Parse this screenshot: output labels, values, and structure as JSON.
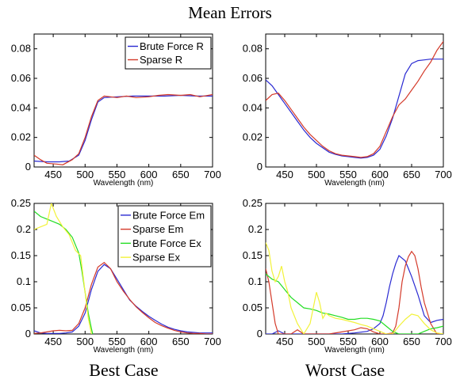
{
  "figure": {
    "title": "Mean Errors",
    "caption_left": "Best Case",
    "caption_right": "Worst Case"
  },
  "colors": {
    "blue": "#2a2ad2",
    "red": "#d43a2a",
    "green": "#22dd22",
    "yellow": "#f2f23a"
  },
  "chart_data": [
    {
      "type": "line",
      "id": "panel-top-left",
      "xlabel": "Wavelength (nm)",
      "xlim": [
        420,
        700
      ],
      "ylim": [
        0,
        0.09
      ],
      "xticks": [
        450,
        500,
        550,
        600,
        650,
        700
      ],
      "yticks": [
        0,
        0.02,
        0.04,
        0.06,
        0.08
      ],
      "ytick_labels": [
        "0",
        "0.02",
        "0.04",
        "0.06",
        "0.08"
      ],
      "legend_position": "top-right",
      "series": [
        {
          "name": "Brute Force R",
          "color": "#2a2ad2",
          "x": [
            420,
            440,
            460,
            475,
            490,
            500,
            510,
            520,
            530,
            550,
            575,
            600,
            625,
            650,
            675,
            700
          ],
          "y": [
            0.004,
            0.0035,
            0.0035,
            0.004,
            0.008,
            0.018,
            0.032,
            0.044,
            0.047,
            0.0475,
            0.048,
            0.048,
            0.048,
            0.0485,
            0.048,
            0.048
          ]
        },
        {
          "name": "Sparse R",
          "color": "#d43a2a",
          "x": [
            420,
            430,
            440,
            455,
            465,
            480,
            490,
            500,
            510,
            520,
            530,
            540,
            550,
            565,
            580,
            600,
            615,
            630,
            650,
            665,
            680,
            700
          ],
          "y": [
            0.008,
            0.005,
            0.0025,
            0.002,
            0.0015,
            0.005,
            0.009,
            0.02,
            0.034,
            0.045,
            0.048,
            0.0475,
            0.047,
            0.048,
            0.047,
            0.0475,
            0.0485,
            0.049,
            0.0485,
            0.049,
            0.0475,
            0.049
          ]
        }
      ]
    },
    {
      "type": "line",
      "id": "panel-top-right",
      "xlabel": "Wavelength (nm)",
      "xlim": [
        420,
        700
      ],
      "ylim": [
        0,
        0.09
      ],
      "xticks": [
        450,
        500,
        550,
        600,
        650,
        700
      ],
      "yticks": [
        0,
        0.02,
        0.04,
        0.06,
        0.08
      ],
      "ytick_labels": [
        "0",
        "0.02",
        "0.04",
        "0.06",
        "0.08"
      ],
      "series": [
        {
          "name": "",
          "color": "#2a2ad2",
          "x": [
            420,
            430,
            440,
            450,
            460,
            470,
            480,
            490,
            500,
            510,
            520,
            530,
            540,
            550,
            560,
            570,
            580,
            590,
            600,
            610,
            620,
            630,
            640,
            650,
            660,
            670,
            680,
            690,
            700
          ],
          "y": [
            0.059,
            0.055,
            0.049,
            0.043,
            0.037,
            0.031,
            0.025,
            0.02,
            0.016,
            0.013,
            0.01,
            0.0085,
            0.0075,
            0.007,
            0.0065,
            0.006,
            0.0065,
            0.008,
            0.012,
            0.021,
            0.033,
            0.048,
            0.063,
            0.07,
            0.072,
            0.0725,
            0.073,
            0.073,
            0.073
          ]
        },
        {
          "name": "",
          "color": "#d43a2a",
          "x": [
            420,
            430,
            440,
            450,
            460,
            470,
            480,
            490,
            500,
            510,
            520,
            530,
            540,
            550,
            560,
            570,
            580,
            590,
            600,
            610,
            620,
            630,
            640,
            650,
            660,
            670,
            680,
            690,
            700
          ],
          "y": [
            0.045,
            0.049,
            0.05,
            0.045,
            0.039,
            0.033,
            0.027,
            0.022,
            0.018,
            0.014,
            0.011,
            0.009,
            0.008,
            0.0075,
            0.007,
            0.0065,
            0.007,
            0.009,
            0.014,
            0.024,
            0.034,
            0.042,
            0.046,
            0.052,
            0.058,
            0.065,
            0.071,
            0.079,
            0.085
          ]
        }
      ]
    },
    {
      "type": "line",
      "id": "panel-bottom-left",
      "xlabel": "Wavelength (nm)",
      "xlim": [
        420,
        700
      ],
      "ylim": [
        0,
        0.25
      ],
      "xticks": [
        450,
        500,
        550,
        600,
        650,
        700
      ],
      "yticks": [
        0,
        0.05,
        0.1,
        0.15,
        0.2,
        0.25
      ],
      "ytick_labels": [
        "0",
        "0.05",
        "0.1",
        "0.15",
        "0.2",
        "0.25"
      ],
      "legend_position": "top-right",
      "series": [
        {
          "name": "Brute Force Em",
          "color": "#2a2ad2",
          "x": [
            420,
            430,
            440,
            450,
            460,
            470,
            480,
            490,
            500,
            510,
            520,
            530,
            540,
            550,
            560,
            570,
            580,
            590,
            600,
            610,
            620,
            630,
            640,
            650,
            660,
            670,
            680,
            690,
            700
          ],
          "y": [
            0.006,
            0.002,
            0.001,
            0.001,
            0.001,
            0.002,
            0.004,
            0.015,
            0.04,
            0.085,
            0.12,
            0.133,
            0.125,
            0.105,
            0.085,
            0.065,
            0.053,
            0.043,
            0.034,
            0.026,
            0.019,
            0.013,
            0.009,
            0.006,
            0.004,
            0.003,
            0.002,
            0.002,
            0.002
          ]
        },
        {
          "name": "Sparse Em",
          "color": "#d43a2a",
          "x": [
            420,
            430,
            440,
            450,
            460,
            470,
            480,
            490,
            500,
            510,
            520,
            530,
            540,
            550,
            560,
            570,
            580,
            590,
            600,
            610,
            620,
            630,
            640,
            650,
            660,
            670,
            680,
            690,
            700
          ],
          "y": [
            0.001,
            0.002,
            0.004,
            0.006,
            0.007,
            0.006,
            0.007,
            0.02,
            0.05,
            0.095,
            0.128,
            0.137,
            0.125,
            0.1,
            0.082,
            0.066,
            0.052,
            0.041,
            0.031,
            0.022,
            0.016,
            0.011,
            0.007,
            0.004,
            0.002,
            0.001,
            0.001,
            0.0,
            0.0
          ]
        },
        {
          "name": "Brute Force Ex",
          "color": "#22dd22",
          "x": [
            420,
            430,
            440,
            450,
            460,
            470,
            480,
            490,
            495,
            500,
            505,
            510,
            512
          ],
          "y": [
            0.235,
            0.225,
            0.22,
            0.215,
            0.21,
            0.2,
            0.185,
            0.155,
            0.12,
            0.08,
            0.04,
            0.01,
            0.0
          ]
        },
        {
          "name": "Sparse Ex",
          "color": "#f2f23a",
          "x": [
            420,
            430,
            440,
            447,
            455,
            465,
            475,
            485,
            493,
            500,
            505,
            510
          ],
          "y": [
            0.2,
            0.205,
            0.21,
            0.25,
            0.225,
            0.205,
            0.19,
            0.16,
            0.15,
            0.08,
            0.03,
            0.0
          ]
        }
      ]
    },
    {
      "type": "line",
      "id": "panel-bottom-right",
      "xlabel": "Wavelength (nm)",
      "xlim": [
        420,
        700
      ],
      "ylim": [
        0,
        0.25
      ],
      "xticks": [
        450,
        500,
        550,
        600,
        650,
        700
      ],
      "yticks": [
        0,
        0.05,
        0.1,
        0.15,
        0.2,
        0.25
      ],
      "ytick_labels": [
        "0",
        "0.05",
        "0.1",
        "0.15",
        "0.2",
        "0.25"
      ],
      "series": [
        {
          "name": "",
          "color": "#2a2ad2",
          "x": [
            420,
            430,
            440,
            450,
            460,
            470,
            480,
            490,
            500,
            520,
            540,
            560,
            580,
            590,
            600,
            605,
            610,
            615,
            620,
            625,
            630,
            635,
            640,
            645,
            650,
            660,
            670,
            680,
            690,
            700
          ],
          "y": [
            0.0,
            0.0,
            0.006,
            0.0,
            0.0,
            0.0,
            0.0,
            0.0,
            0.0,
            0.0,
            0.0,
            0.002,
            0.005,
            0.01,
            0.02,
            0.035,
            0.06,
            0.09,
            0.115,
            0.135,
            0.15,
            0.145,
            0.14,
            0.125,
            0.11,
            0.075,
            0.035,
            0.022,
            0.026,
            0.028
          ]
        },
        {
          "name": "",
          "color": "#d43a2a",
          "x": [
            420,
            425,
            430,
            435,
            440,
            450,
            460,
            470,
            480,
            500,
            520,
            540,
            560,
            570,
            580,
            590,
            600,
            610,
            620,
            625,
            630,
            635,
            640,
            645,
            650,
            655,
            660,
            665,
            670,
            680,
            690,
            700
          ],
          "y": [
            0.125,
            0.1,
            0.06,
            0.02,
            0.0,
            0.0,
            0.0,
            0.008,
            0.0,
            0.0,
            0.0,
            0.004,
            0.008,
            0.012,
            0.01,
            0.004,
            0.0,
            0.0,
            0.002,
            0.015,
            0.05,
            0.1,
            0.13,
            0.148,
            0.158,
            0.15,
            0.125,
            0.09,
            0.06,
            0.02,
            0.0,
            0.0
          ]
        },
        {
          "name": "",
          "color": "#22dd22",
          "x": [
            420,
            430,
            440,
            450,
            460,
            470,
            480,
            490,
            500,
            510,
            520,
            530,
            540,
            550,
            560,
            570,
            580,
            590,
            600,
            610,
            620,
            630,
            640,
            650,
            660,
            670,
            680,
            690,
            700
          ],
          "y": [
            0.115,
            0.105,
            0.1,
            0.085,
            0.07,
            0.06,
            0.05,
            0.048,
            0.045,
            0.04,
            0.038,
            0.035,
            0.032,
            0.028,
            0.028,
            0.03,
            0.03,
            0.028,
            0.025,
            0.015,
            0.005,
            0.0,
            0.0,
            0.0,
            0.0,
            0.005,
            0.01,
            0.012,
            0.015
          ]
        },
        {
          "name": "",
          "color": "#f2f23a",
          "x": [
            420,
            425,
            430,
            435,
            440,
            445,
            450,
            455,
            460,
            470,
            480,
            490,
            495,
            500,
            505,
            510,
            515,
            520,
            530,
            540,
            550,
            560,
            570,
            580,
            590,
            600,
            610,
            620,
            630,
            640,
            650,
            660,
            670,
            680,
            690,
            700
          ],
          "y": [
            0.175,
            0.16,
            0.12,
            0.1,
            0.11,
            0.13,
            0.1,
            0.08,
            0.05,
            0.02,
            0.0,
            0.02,
            0.05,
            0.08,
            0.06,
            0.03,
            0.04,
            0.035,
            0.03,
            0.028,
            0.025,
            0.022,
            0.018,
            0.015,
            0.01,
            0.005,
            0.0,
            0.0,
            0.015,
            0.028,
            0.038,
            0.035,
            0.02,
            0.008,
            0.002,
            0.0
          ]
        }
      ]
    }
  ]
}
